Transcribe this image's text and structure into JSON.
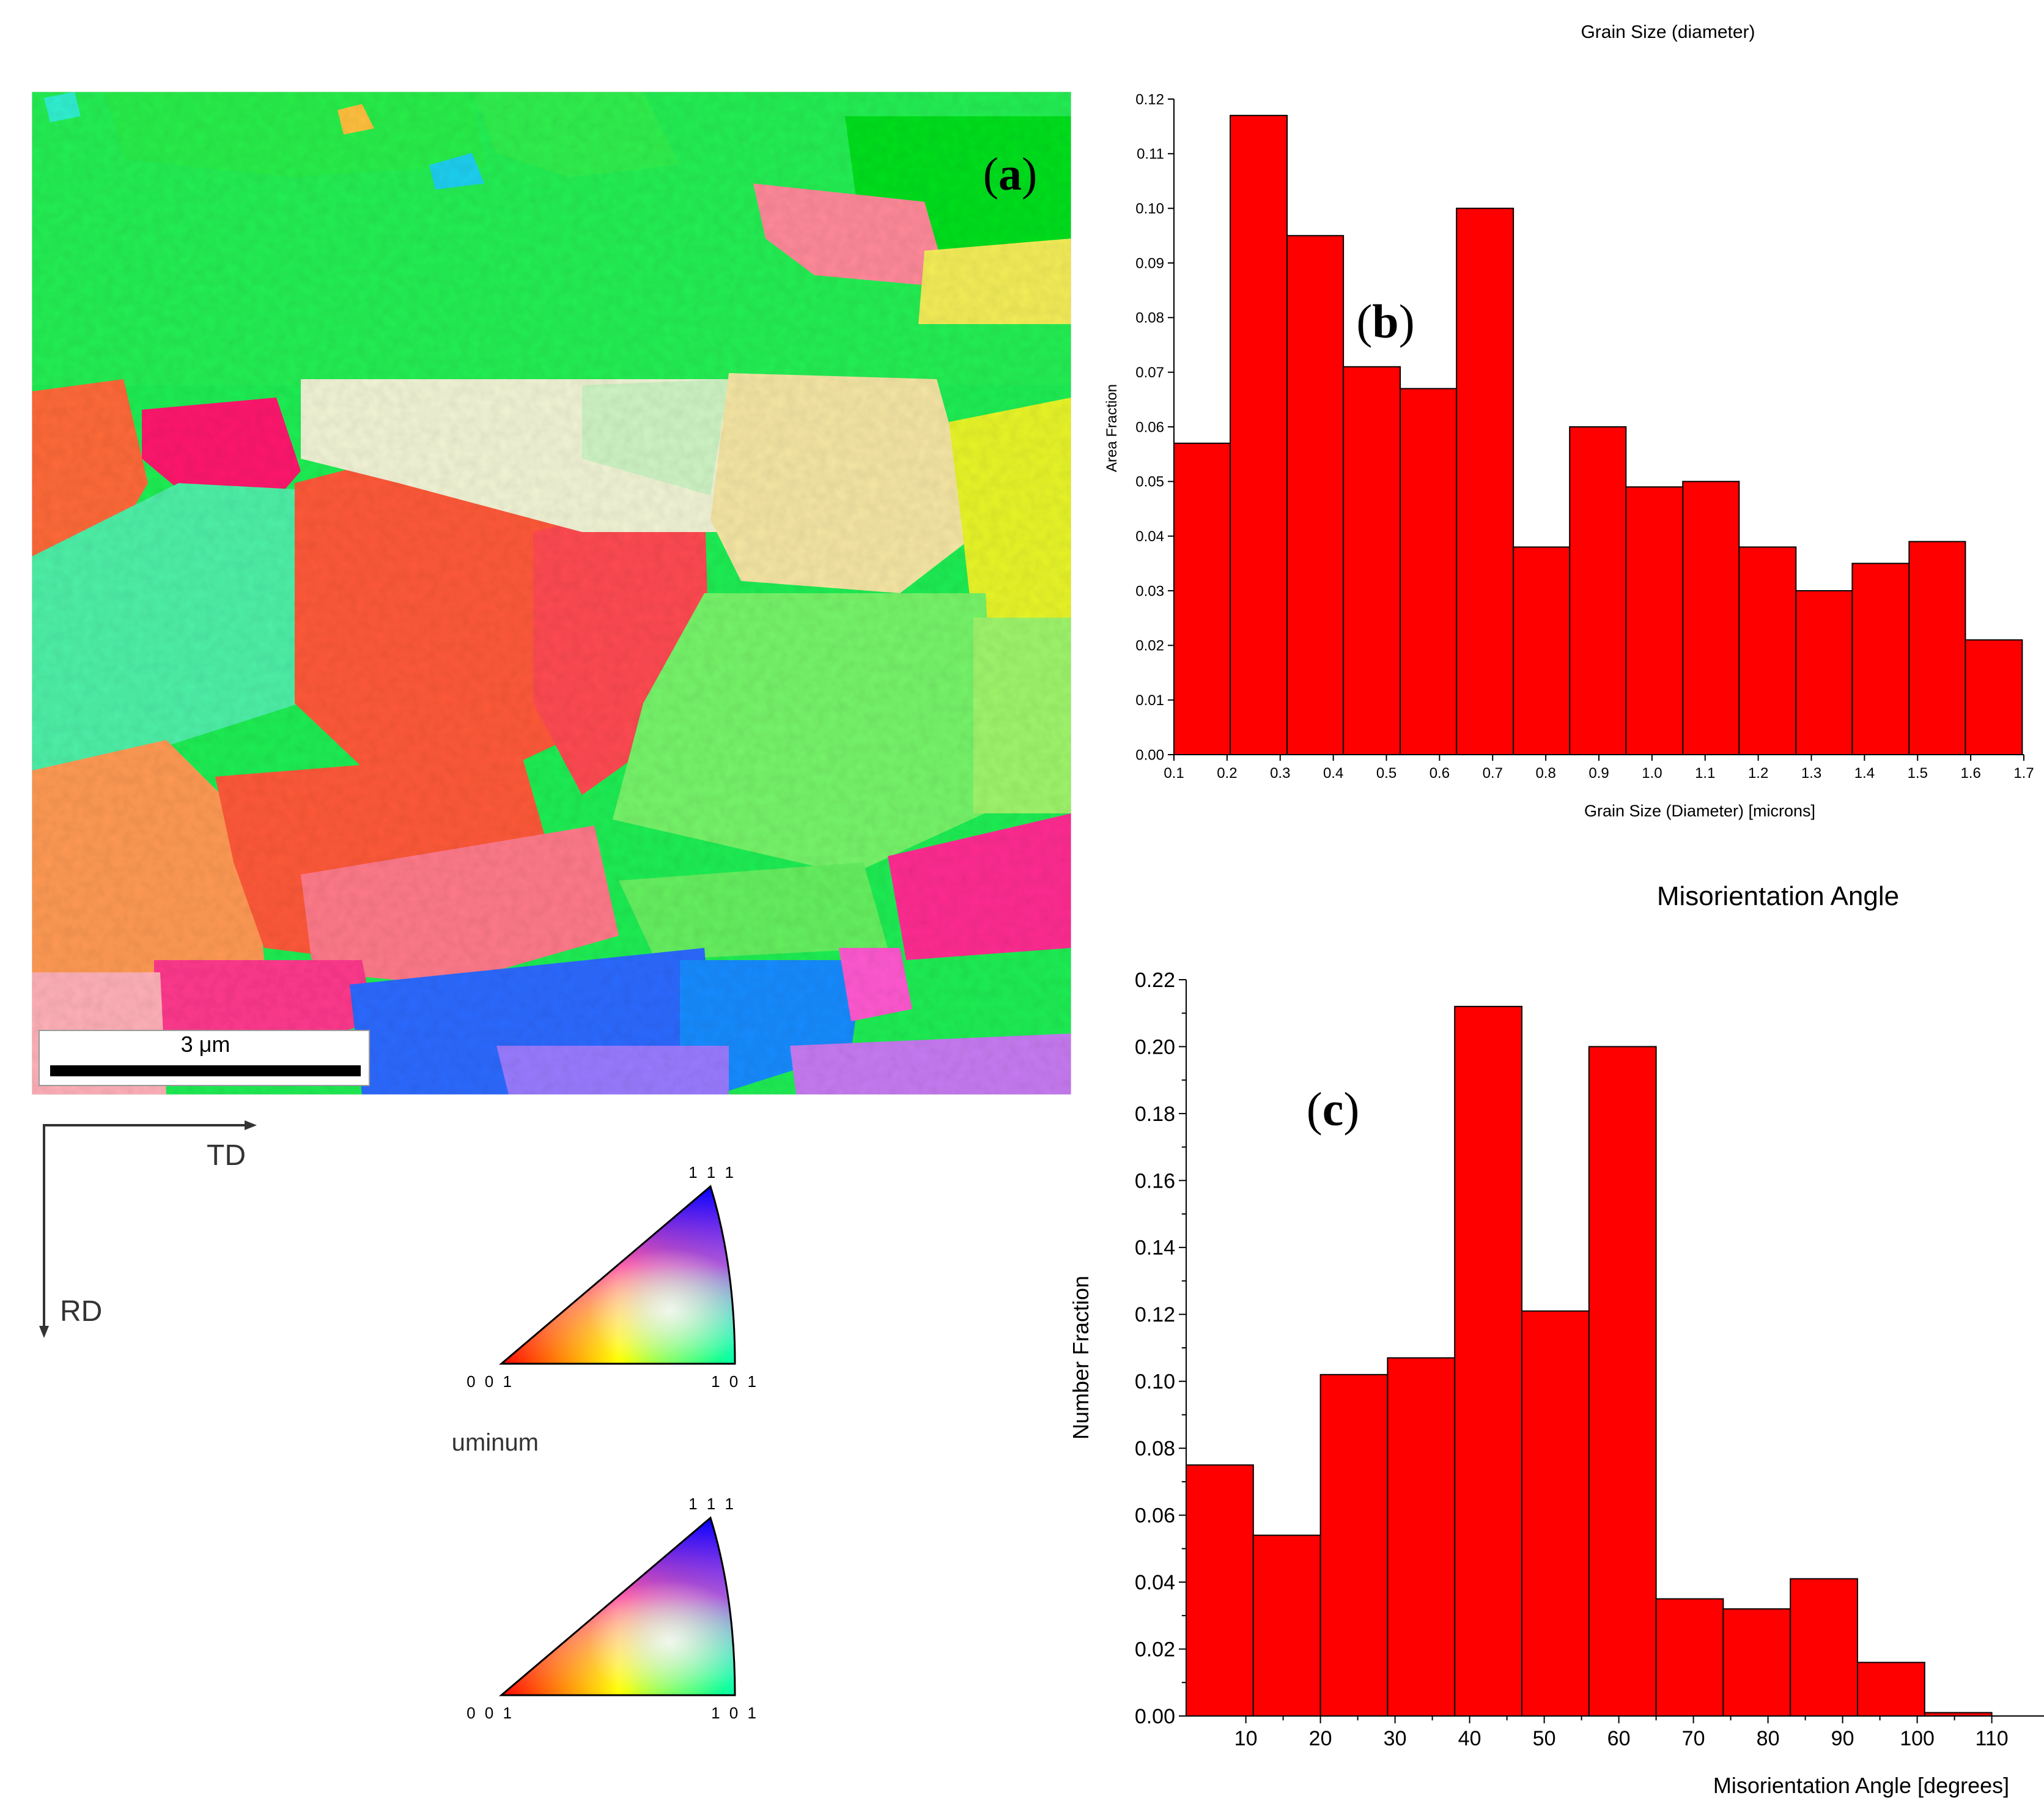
{
  "panel_a": {
    "label_open": "(",
    "label_letter": "a",
    "label_close": ")",
    "scale_bar": {
      "label": "3 μm"
    },
    "axes": {
      "horizontal": "TD",
      "vertical": "RD"
    },
    "legend": {
      "material": "Aluminum",
      "corner_top": "1 1 1",
      "corner_left": "0 0 1",
      "corner_right": "1 0 1"
    }
  },
  "colors": {
    "bar_fill": "#ff0000",
    "bar_stroke": "#000000",
    "axis": "#000000",
    "background": "#ffffff"
  },
  "chart_data": [
    {
      "id": "grain_size",
      "type": "bar",
      "title": "Grain Size (diameter)",
      "panel_label": "b",
      "xlabel": "Grain Size (Diameter) [microns]",
      "ylabel": "Area Fraction",
      "xlim": [
        0.1,
        1.7
      ],
      "ylim": [
        0,
        0.12
      ],
      "x_ticks": [
        "0.1",
        "0.2",
        "0.3",
        "0.4",
        "0.5",
        "0.6",
        "0.7",
        "0.8",
        "0.9",
        "1.0",
        "1.1",
        "1.2",
        "1.3",
        "1.4",
        "1.5",
        "1.6",
        "1.7"
      ],
      "y_ticks": [
        "0.00",
        "0.01",
        "0.02",
        "0.03",
        "0.04",
        "0.05",
        "0.06",
        "0.07",
        "0.08",
        "0.09",
        "0.10",
        "0.11",
        "0.12"
      ],
      "bin_edges": [
        0.1,
        0.206,
        0.313,
        0.419,
        0.526,
        0.632,
        0.739,
        0.845,
        0.951,
        1.058,
        1.164,
        1.271,
        1.377,
        1.484,
        1.59,
        1.697
      ],
      "values": [
        0.057,
        0.117,
        0.095,
        0.071,
        0.067,
        0.1,
        0.038,
        0.06,
        0.049,
        0.05,
        0.038,
        0.03,
        0.035,
        0.039,
        0.021
      ],
      "grid": false
    },
    {
      "id": "misorientation",
      "type": "bar",
      "title": "Misorientation Angle",
      "panel_label": "c",
      "xlabel": "Misorientation Angle [degrees]",
      "ylabel": "Number Fraction",
      "xlim": [
        2,
        117
      ],
      "ylim": [
        0,
        0.22
      ],
      "x_ticks": [
        "10",
        "20",
        "30",
        "40",
        "50",
        "60",
        "70",
        "80",
        "90",
        "100",
        "110"
      ],
      "y_ticks": [
        "0.00",
        "0.02",
        "0.04",
        "0.06",
        "0.08",
        "0.10",
        "0.12",
        "0.14",
        "0.16",
        "0.18",
        "0.20",
        "0.22"
      ],
      "bin_edges": [
        2,
        11,
        20,
        29,
        38,
        47,
        56,
        65,
        74,
        83,
        92,
        101,
        110
      ],
      "values": [
        0.075,
        0.054,
        0.102,
        0.107,
        0.212,
        0.121,
        0.2,
        0.035,
        0.032,
        0.041,
        0.016,
        0.001
      ],
      "grid": false
    }
  ]
}
